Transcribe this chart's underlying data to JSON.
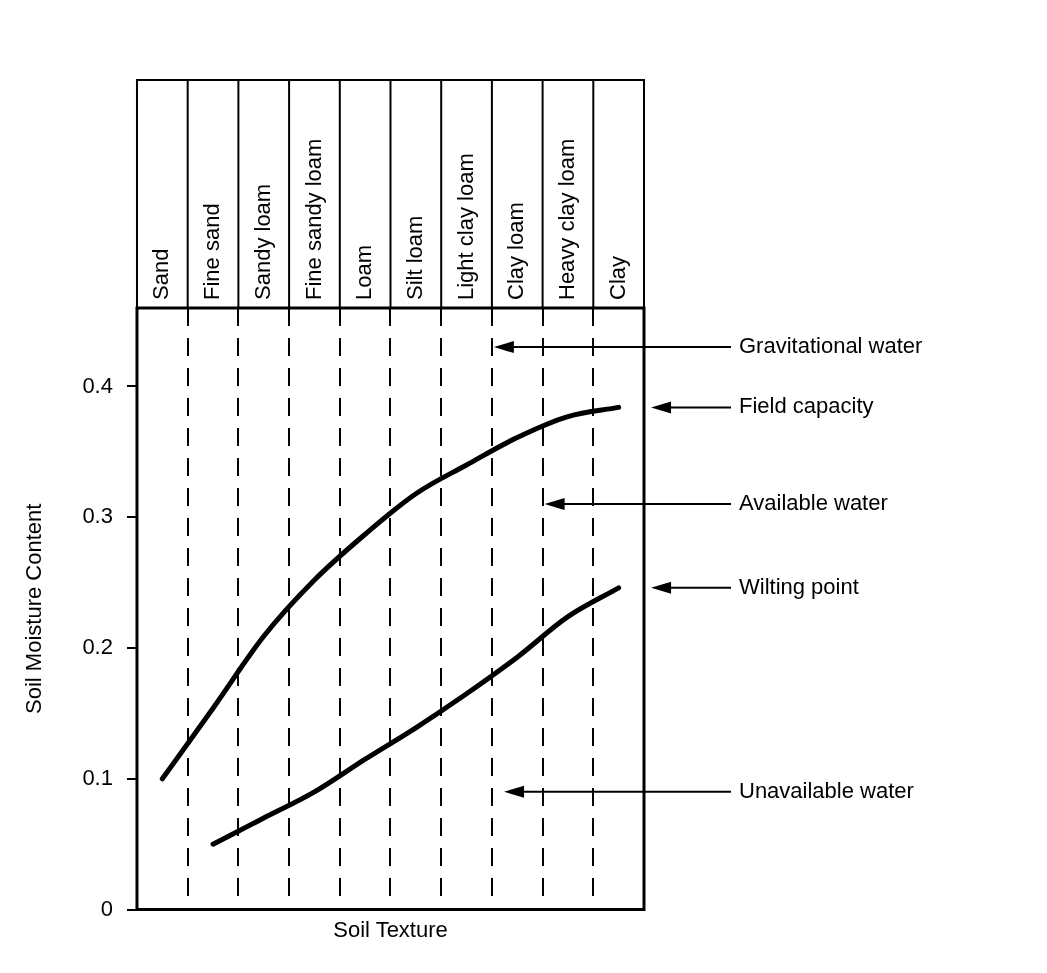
{
  "chart_data": {
    "type": "line",
    "xlabel": "Soil Texture",
    "ylabel": "Soil Moisture Content",
    "categories": [
      "Sand",
      "Fine sand",
      "Sandy loam",
      "Fine sandy loam",
      "Loam",
      "Silt loam",
      "Light clay loam",
      "Clay loam",
      "Heavy clay loam",
      "Clay"
    ],
    "series": [
      {
        "color": "#000000",
        "values": [
          0.1,
          0.154,
          0.209,
          0.252,
          0.287,
          0.318,
          0.34,
          0.361,
          0.377,
          0.384
        ]
      },
      {
        "color": "#000000",
        "values": [
          null,
          0.05,
          0.07,
          0.09,
          0.115,
          0.139,
          0.165,
          0.193,
          0.224,
          0.246
        ]
      }
    ],
    "ylim": [
      0,
      0.46
    ],
    "yticks": [
      0,
      0.1,
      0.2,
      0.3,
      0.4
    ],
    "grid": "x",
    "marker": "none",
    "line_style": "solid",
    "annotations": [
      "Gravitational water",
      "Field capacity",
      "Available water",
      "Wilting point",
      "Unavailable water"
    ]
  }
}
